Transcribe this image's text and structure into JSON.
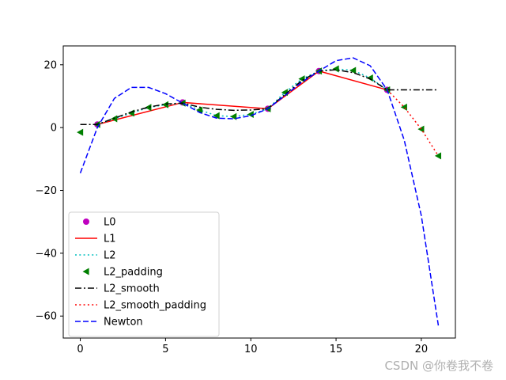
{
  "chart_data": {
    "type": "line",
    "xlim": [
      -1,
      22
    ],
    "ylim": [
      -67,
      26
    ],
    "xticks": [
      0,
      5,
      10,
      15,
      20
    ],
    "yticks": [
      -60,
      -40,
      -20,
      0,
      20
    ],
    "grid": false,
    "legend_position": "lower-left",
    "series": [
      {
        "name": "L0",
        "style": "marker-circle",
        "color": "#bf00bf",
        "x": [
          1,
          6,
          11,
          14,
          18
        ],
        "y": [
          1,
          8,
          6,
          18,
          12
        ]
      },
      {
        "name": "L1",
        "style": "solid",
        "color": "#ff0000",
        "x": [
          1,
          6,
          11,
          14,
          18
        ],
        "y": [
          1,
          8,
          6,
          18,
          12
        ]
      },
      {
        "name": "L2",
        "style": "dotted",
        "color": "#00bfbf",
        "x": [
          1,
          2,
          3,
          4,
          5,
          6,
          7,
          8,
          9,
          10,
          11,
          12,
          13,
          14,
          15,
          16,
          17,
          18
        ],
        "y": [
          1,
          2.8,
          4.6,
          6.4,
          7.3,
          7.8,
          5.6,
          3.8,
          3.5,
          4.2,
          6,
          11.2,
          15.5,
          18,
          18.7,
          18.2,
          15.8,
          12
        ]
      },
      {
        "name": "L2_padding",
        "style": "marker-triangle-left",
        "color": "#007f00",
        "x": [
          0,
          1,
          2,
          3,
          4,
          5,
          6,
          7,
          8,
          9,
          10,
          11,
          12,
          13,
          14,
          15,
          16,
          17,
          18,
          19,
          20,
          21
        ],
        "y": [
          -1.5,
          1,
          2.8,
          4.6,
          6.4,
          7.3,
          7.8,
          5.6,
          3.8,
          3.5,
          4.2,
          6,
          11.2,
          15.5,
          18,
          18.7,
          18.2,
          15.8,
          12,
          6.5,
          -0.5,
          -9
        ]
      },
      {
        "name": "L2_smooth",
        "style": "dashdot",
        "color": "#000000",
        "x": [
          0,
          1,
          2,
          3,
          4,
          5,
          6,
          7,
          8,
          9,
          10,
          11,
          12,
          13,
          14,
          15,
          16,
          17,
          18,
          19,
          20,
          21
        ],
        "y": [
          1,
          1,
          3,
          5,
          6.5,
          7.5,
          7.8,
          6.5,
          5.8,
          5.5,
          5.6,
          6,
          10.5,
          15,
          18,
          18.4,
          17.5,
          15.5,
          12,
          12,
          12,
          12
        ]
      },
      {
        "name": "L2_smooth_padding",
        "style": "dotted",
        "color": "#ff0000",
        "x": [
          18,
          19,
          20,
          21
        ],
        "y": [
          12,
          6.5,
          -0.5,
          -9
        ]
      },
      {
        "name": "Newton",
        "style": "dashed",
        "color": "#0000ff",
        "x": [
          0,
          1,
          2,
          3,
          4,
          5,
          6,
          7,
          8,
          9,
          10,
          11,
          12,
          13,
          14,
          15,
          16,
          17,
          18,
          19,
          20,
          21
        ],
        "y": [
          -14.5,
          0,
          9.3,
          12.8,
          12.8,
          10.8,
          7.8,
          4.8,
          3,
          2.8,
          3.8,
          6,
          10.2,
          14.5,
          18,
          21.3,
          22.2,
          19.7,
          12,
          -4,
          -28,
          -63
        ]
      }
    ]
  },
  "watermark": "CSDN @你卷我不卷"
}
